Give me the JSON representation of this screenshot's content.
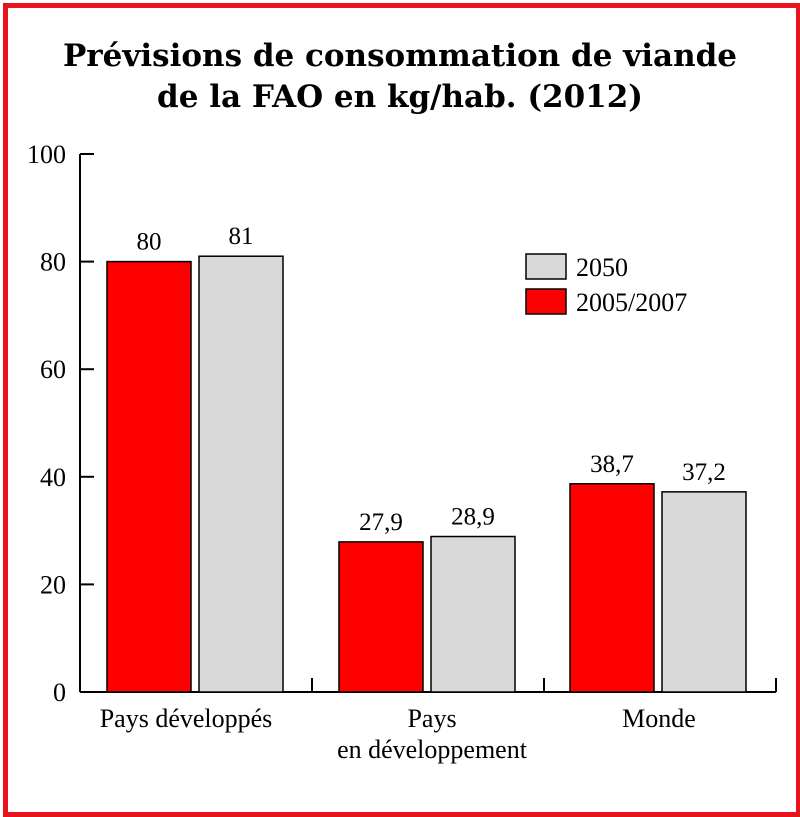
{
  "chart_data": {
    "type": "bar",
    "title_line1": "Prévisions de consommation de viande",
    "title_line2": "de la FAO en kg/hab. (2012)",
    "categories": [
      {
        "line1": "Pays développés",
        "line2": ""
      },
      {
        "line1": "Pays",
        "line2": "en développement"
      },
      {
        "line1": "Monde",
        "line2": ""
      }
    ],
    "series": [
      {
        "name": "2005/2007",
        "color": "#ff0000",
        "values": [
          80,
          27.9,
          38.7
        ],
        "labels": [
          "80",
          "27,9",
          "38,7"
        ]
      },
      {
        "name": "2050",
        "color": "#d9d9d9",
        "values": [
          81,
          28.9,
          37.2
        ],
        "labels": [
          "81",
          "28,9",
          "37,2"
        ]
      }
    ],
    "ylim": [
      0,
      100
    ],
    "yticks": [
      "0",
      "20",
      "40",
      "60",
      "80",
      "100"
    ],
    "legend_order": [
      "2050",
      "2005/2007"
    ],
    "legend_position": "top-right",
    "grid": false,
    "border_color": "#e8141b"
  }
}
